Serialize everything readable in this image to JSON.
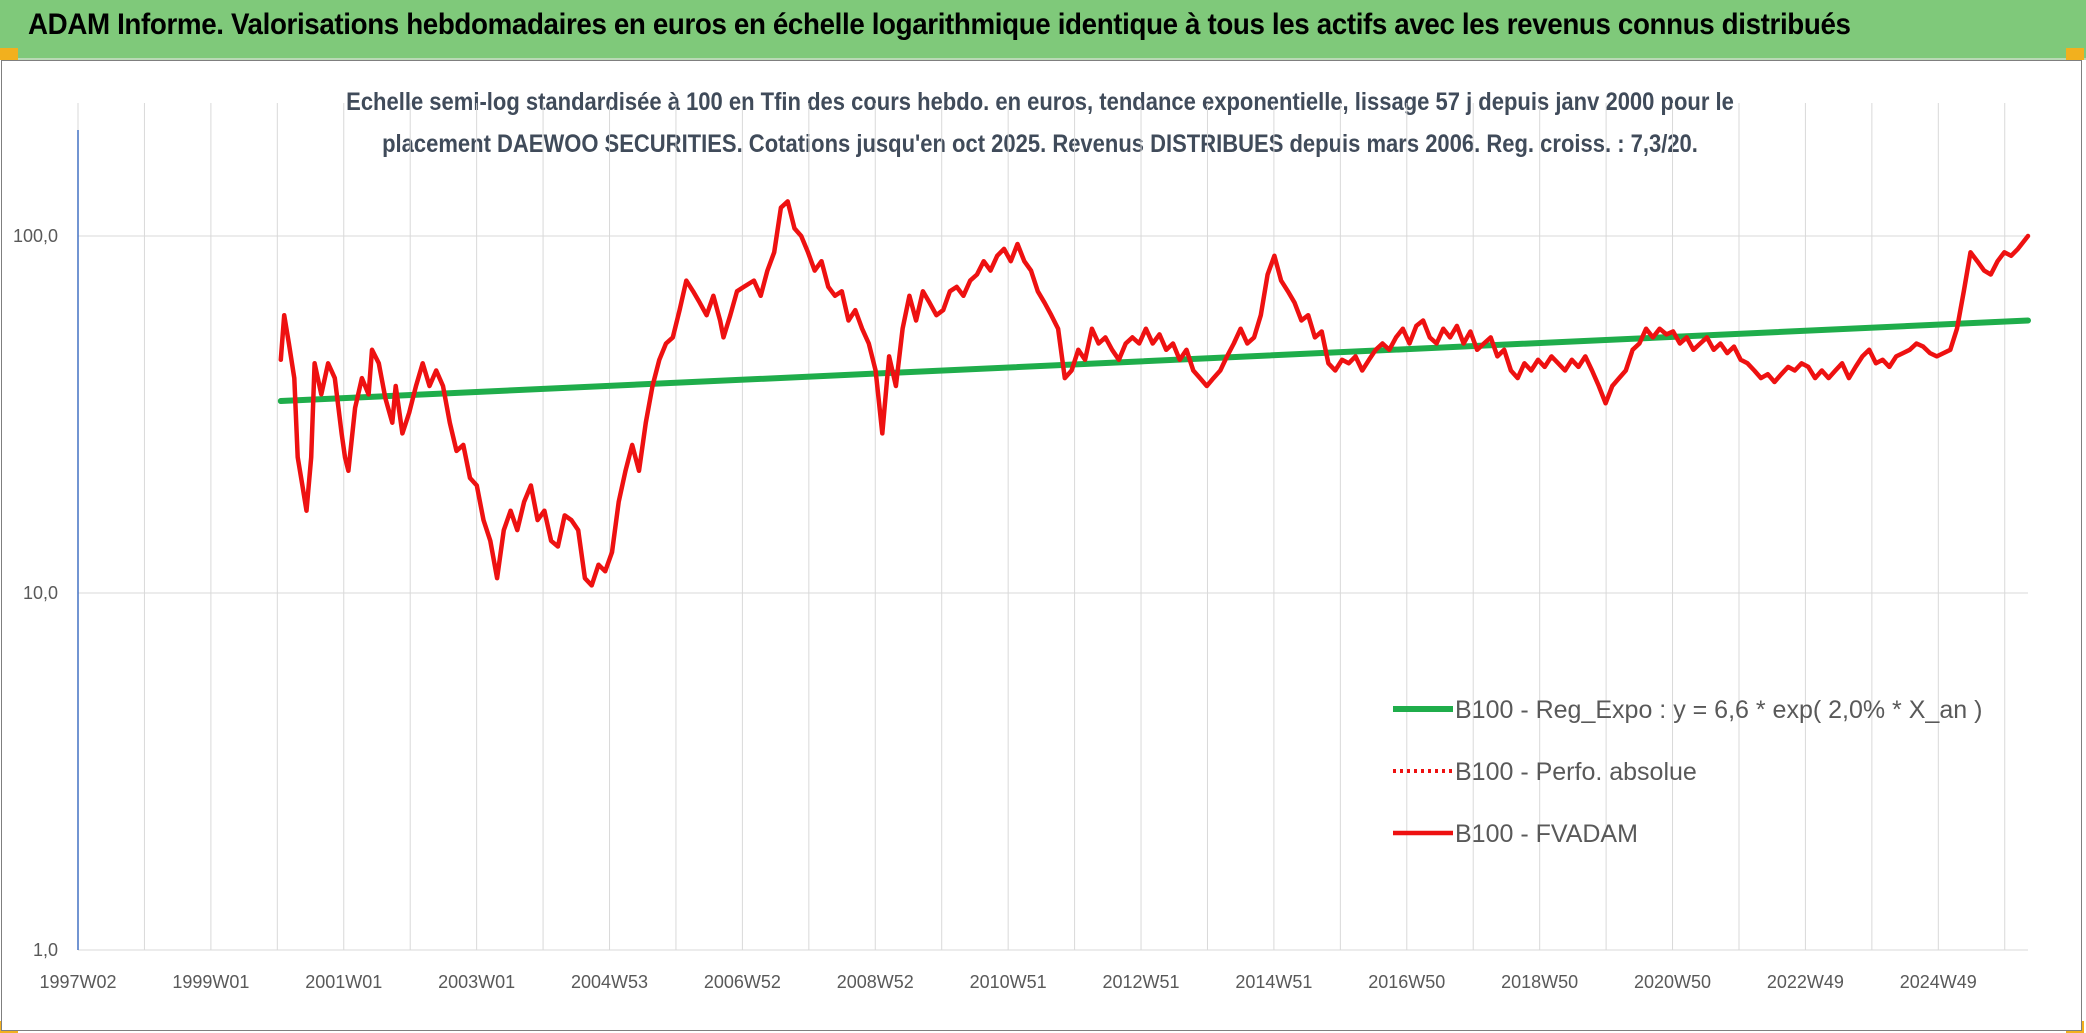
{
  "header": {
    "title": "ADAM Informe. Valorisations hebdomadaires en euros en échelle logarithmique identique à tous les actifs avec les revenus connus distribués"
  },
  "colors": {
    "banner": "#7fc97a",
    "trend": "#1fad4b",
    "price": "#ee1111",
    "grid": "#d9d9d9",
    "axis": "#4472c4"
  },
  "chart_data": {
    "type": "line",
    "title_lines": [
      "Echelle semi-log standardisée à 100 en Tfin des cours hebdo. en euros, tendance exponentielle, lissage 57 j depuis janv 2000 pour le",
      "placement DAEWOO SECURITIES. Cotations jusqu'en oct 2025. Revenus DISTRIBUES depuis mars 2006. Reg. croiss. : 7,3/20."
    ],
    "y_scale": "log",
    "ylim": [
      1,
      100
    ],
    "y_ticks": [
      "1,0",
      "10,0",
      "100,0"
    ],
    "x_range": [
      1997.0,
      2025.85
    ],
    "x_tick_labels": [
      "1997W02",
      "1999W01",
      "2001W01",
      "2003W01",
      "2004W53",
      "2006W52",
      "2008W52",
      "2010W51",
      "2012W51",
      "2014W51",
      "2016W50",
      "2018W50",
      "2020W50",
      "2022W49",
      "2024W49"
    ],
    "grid": true,
    "legend_position": "bottom-right",
    "legend": [
      {
        "label": "B100 - Reg_Expo : y = 6,6 * exp( 2,0% *  X_an )",
        "style": "solid-green"
      },
      {
        "label": "B100 - Perfo. absolue",
        "style": "dotted-red"
      },
      {
        "label": "B100 - FVADAM",
        "style": "solid-red"
      }
    ],
    "series": [
      {
        "name": "B100 - Reg_Expo : y = 6,6 * exp( 2,0% *  X_an )",
        "points": [
          [
            2000.0,
            34.5
          ],
          [
            2025.85,
            58.0
          ]
        ]
      },
      {
        "name": "B100 - FVADAM",
        "points": [
          [
            2000.0,
            45
          ],
          [
            2000.05,
            60
          ],
          [
            2000.12,
            50
          ],
          [
            2000.2,
            40
          ],
          [
            2000.25,
            24
          ],
          [
            2000.32,
            20
          ],
          [
            2000.38,
            17
          ],
          [
            2000.45,
            24
          ],
          [
            2000.5,
            44
          ],
          [
            2000.6,
            36
          ],
          [
            2000.7,
            44
          ],
          [
            2000.8,
            40
          ],
          [
            2000.9,
            28
          ],
          [
            2000.95,
            24
          ],
          [
            2001.0,
            22
          ],
          [
            2001.1,
            33
          ],
          [
            2001.2,
            40
          ],
          [
            2001.3,
            36
          ],
          [
            2001.35,
            48
          ],
          [
            2001.45,
            44
          ],
          [
            2001.55,
            35
          ],
          [
            2001.65,
            30
          ],
          [
            2001.7,
            38
          ],
          [
            2001.8,
            28
          ],
          [
            2001.9,
            32
          ],
          [
            2002.0,
            38
          ],
          [
            2002.1,
            44
          ],
          [
            2002.2,
            38
          ],
          [
            2002.3,
            42
          ],
          [
            2002.4,
            38
          ],
          [
            2002.5,
            30
          ],
          [
            2002.6,
            25
          ],
          [
            2002.7,
            26
          ],
          [
            2002.8,
            21
          ],
          [
            2002.9,
            20
          ],
          [
            2003.0,
            16
          ],
          [
            2003.1,
            14
          ],
          [
            2003.2,
            11
          ],
          [
            2003.3,
            15
          ],
          [
            2003.4,
            17
          ],
          [
            2003.5,
            15
          ],
          [
            2003.6,
            18
          ],
          [
            2003.7,
            20
          ],
          [
            2003.8,
            16
          ],
          [
            2003.9,
            17
          ],
          [
            2004.0,
            14
          ],
          [
            2004.1,
            13.5
          ],
          [
            2004.2,
            16.5
          ],
          [
            2004.3,
            16
          ],
          [
            2004.4,
            15
          ],
          [
            2004.5,
            11
          ],
          [
            2004.6,
            10.5
          ],
          [
            2004.7,
            12
          ],
          [
            2004.8,
            11.5
          ],
          [
            2004.9,
            13
          ],
          [
            2005.0,
            18
          ],
          [
            2005.1,
            22
          ],
          [
            2005.2,
            26
          ],
          [
            2005.3,
            22
          ],
          [
            2005.4,
            30
          ],
          [
            2005.5,
            38
          ],
          [
            2005.6,
            45
          ],
          [
            2005.7,
            50
          ],
          [
            2005.8,
            52
          ],
          [
            2005.9,
            62
          ],
          [
            2006.0,
            75
          ],
          [
            2006.1,
            70
          ],
          [
            2006.2,
            65
          ],
          [
            2006.3,
            60
          ],
          [
            2006.4,
            68
          ],
          [
            2006.5,
            58
          ],
          [
            2006.55,
            52
          ],
          [
            2006.65,
            60
          ],
          [
            2006.75,
            70
          ],
          [
            2006.85,
            72
          ],
          [
            2007.0,
            75
          ],
          [
            2007.1,
            68
          ],
          [
            2007.2,
            80
          ],
          [
            2007.3,
            90
          ],
          [
            2007.4,
            120
          ],
          [
            2007.5,
            125
          ],
          [
            2007.6,
            105
          ],
          [
            2007.7,
            100
          ],
          [
            2007.8,
            90
          ],
          [
            2007.9,
            80
          ],
          [
            2008.0,
            85
          ],
          [
            2008.1,
            72
          ],
          [
            2008.2,
            68
          ],
          [
            2008.3,
            70
          ],
          [
            2008.4,
            58
          ],
          [
            2008.5,
            62
          ],
          [
            2008.6,
            55
          ],
          [
            2008.7,
            50
          ],
          [
            2008.8,
            42
          ],
          [
            2008.9,
            28
          ],
          [
            2009.0,
            46
          ],
          [
            2009.1,
            38
          ],
          [
            2009.2,
            55
          ],
          [
            2009.3,
            68
          ],
          [
            2009.4,
            58
          ],
          [
            2009.5,
            70
          ],
          [
            2009.6,
            65
          ],
          [
            2009.7,
            60
          ],
          [
            2009.8,
            62
          ],
          [
            2009.9,
            70
          ],
          [
            2010.0,
            72
          ],
          [
            2010.1,
            68
          ],
          [
            2010.2,
            75
          ],
          [
            2010.3,
            78
          ],
          [
            2010.4,
            85
          ],
          [
            2010.5,
            80
          ],
          [
            2010.6,
            88
          ],
          [
            2010.7,
            92
          ],
          [
            2010.8,
            85
          ],
          [
            2010.9,
            95
          ],
          [
            2011.0,
            85
          ],
          [
            2011.1,
            80
          ],
          [
            2011.2,
            70
          ],
          [
            2011.3,
            65
          ],
          [
            2011.4,
            60
          ],
          [
            2011.5,
            55
          ],
          [
            2011.6,
            40
          ],
          [
            2011.7,
            42
          ],
          [
            2011.8,
            48
          ],
          [
            2011.9,
            45
          ],
          [
            2012.0,
            55
          ],
          [
            2012.1,
            50
          ],
          [
            2012.2,
            52
          ],
          [
            2012.3,
            48
          ],
          [
            2012.4,
            45
          ],
          [
            2012.5,
            50
          ],
          [
            2012.6,
            52
          ],
          [
            2012.7,
            50
          ],
          [
            2012.8,
            55
          ],
          [
            2012.9,
            50
          ],
          [
            2013.0,
            53
          ],
          [
            2013.1,
            48
          ],
          [
            2013.2,
            50
          ],
          [
            2013.3,
            45
          ],
          [
            2013.4,
            48
          ],
          [
            2013.5,
            42
          ],
          [
            2013.6,
            40
          ],
          [
            2013.7,
            38
          ],
          [
            2013.8,
            40
          ],
          [
            2013.9,
            42
          ],
          [
            2014.0,
            46
          ],
          [
            2014.1,
            50
          ],
          [
            2014.2,
            55
          ],
          [
            2014.3,
            50
          ],
          [
            2014.4,
            52
          ],
          [
            2014.5,
            60
          ],
          [
            2014.6,
            78
          ],
          [
            2014.7,
            88
          ],
          [
            2014.8,
            75
          ],
          [
            2014.9,
            70
          ],
          [
            2015.0,
            65
          ],
          [
            2015.1,
            58
          ],
          [
            2015.2,
            60
          ],
          [
            2015.3,
            52
          ],
          [
            2015.4,
            54
          ],
          [
            2015.5,
            44
          ],
          [
            2015.6,
            42
          ],
          [
            2015.7,
            45
          ],
          [
            2015.8,
            44
          ],
          [
            2015.9,
            46
          ],
          [
            2016.0,
            42
          ],
          [
            2016.1,
            45
          ],
          [
            2016.2,
            48
          ],
          [
            2016.3,
            50
          ],
          [
            2016.4,
            48
          ],
          [
            2016.5,
            52
          ],
          [
            2016.6,
            55
          ],
          [
            2016.7,
            50
          ],
          [
            2016.8,
            56
          ],
          [
            2016.9,
            58
          ],
          [
            2017.0,
            52
          ],
          [
            2017.1,
            50
          ],
          [
            2017.2,
            55
          ],
          [
            2017.3,
            52
          ],
          [
            2017.4,
            56
          ],
          [
            2017.5,
            50
          ],
          [
            2017.6,
            54
          ],
          [
            2017.7,
            48
          ],
          [
            2017.8,
            50
          ],
          [
            2017.9,
            52
          ],
          [
            2018.0,
            46
          ],
          [
            2018.1,
            48
          ],
          [
            2018.2,
            42
          ],
          [
            2018.3,
            40
          ],
          [
            2018.4,
            44
          ],
          [
            2018.5,
            42
          ],
          [
            2018.6,
            45
          ],
          [
            2018.7,
            43
          ],
          [
            2018.8,
            46
          ],
          [
            2018.9,
            44
          ],
          [
            2019.0,
            42
          ],
          [
            2019.1,
            45
          ],
          [
            2019.2,
            43
          ],
          [
            2019.3,
            46
          ],
          [
            2019.4,
            42
          ],
          [
            2019.5,
            38
          ],
          [
            2019.6,
            34
          ],
          [
            2019.7,
            38
          ],
          [
            2019.8,
            40
          ],
          [
            2019.9,
            42
          ],
          [
            2020.0,
            48
          ],
          [
            2020.1,
            50
          ],
          [
            2020.2,
            55
          ],
          [
            2020.3,
            52
          ],
          [
            2020.4,
            55
          ],
          [
            2020.5,
            53
          ],
          [
            2020.6,
            54
          ],
          [
            2020.7,
            50
          ],
          [
            2020.8,
            52
          ],
          [
            2020.9,
            48
          ],
          [
            2021.0,
            50
          ],
          [
            2021.1,
            52
          ],
          [
            2021.2,
            48
          ],
          [
            2021.3,
            50
          ],
          [
            2021.4,
            47
          ],
          [
            2021.5,
            49
          ],
          [
            2021.6,
            45
          ],
          [
            2021.7,
            44
          ],
          [
            2021.8,
            42
          ],
          [
            2021.9,
            40
          ],
          [
            2022.0,
            41
          ],
          [
            2022.1,
            39
          ],
          [
            2022.2,
            41
          ],
          [
            2022.3,
            43
          ],
          [
            2022.4,
            42
          ],
          [
            2022.5,
            44
          ],
          [
            2022.6,
            43
          ],
          [
            2022.7,
            40
          ],
          [
            2022.8,
            42
          ],
          [
            2022.9,
            40
          ],
          [
            2023.0,
            42
          ],
          [
            2023.1,
            44
          ],
          [
            2023.2,
            40
          ],
          [
            2023.3,
            43
          ],
          [
            2023.4,
            46
          ],
          [
            2023.5,
            48
          ],
          [
            2023.6,
            44
          ],
          [
            2023.7,
            45
          ],
          [
            2023.8,
            43
          ],
          [
            2023.9,
            46
          ],
          [
            2024.0,
            47
          ],
          [
            2024.1,
            48
          ],
          [
            2024.2,
            50
          ],
          [
            2024.3,
            49
          ],
          [
            2024.4,
            47
          ],
          [
            2024.5,
            46
          ],
          [
            2024.6,
            47
          ],
          [
            2024.7,
            48
          ],
          [
            2024.8,
            55
          ],
          [
            2024.9,
            70
          ],
          [
            2025.0,
            90
          ],
          [
            2025.1,
            85
          ],
          [
            2025.2,
            80
          ],
          [
            2025.3,
            78
          ],
          [
            2025.4,
            85
          ],
          [
            2025.5,
            90
          ],
          [
            2025.6,
            88
          ],
          [
            2025.7,
            92
          ],
          [
            2025.85,
            100
          ]
        ]
      }
    ]
  }
}
